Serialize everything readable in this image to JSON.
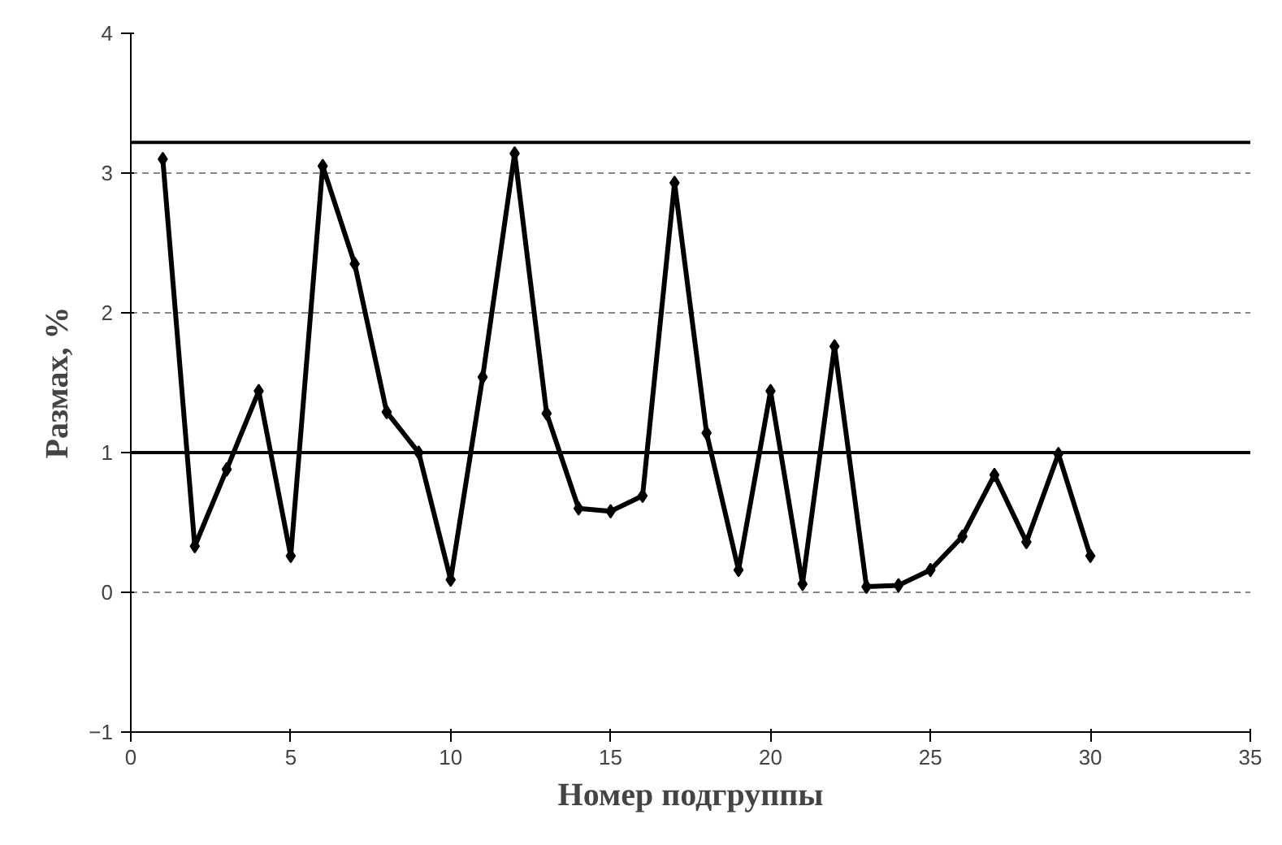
{
  "chart_data": {
    "type": "line",
    "xlabel": "Номер подгруппы",
    "ylabel": "Размах, %",
    "x": [
      1,
      2,
      3,
      4,
      5,
      6,
      7,
      8,
      9,
      10,
      11,
      12,
      13,
      14,
      15,
      16,
      17,
      18,
      19,
      20,
      21,
      22,
      23,
      24,
      25,
      26,
      27,
      28,
      29,
      30
    ],
    "series": [
      {
        "color": "#000000",
        "values": [
          3.1,
          0.33,
          0.88,
          1.44,
          0.26,
          3.05,
          2.35,
          1.29,
          1.0,
          0.09,
          1.54,
          3.14,
          1.28,
          0.6,
          0.58,
          0.69,
          2.93,
          1.14,
          0.16,
          1.44,
          0.06,
          1.76,
          0.04,
          0.05,
          0.16,
          0.4,
          0.84,
          0.36,
          0.99,
          0.26
        ]
      }
    ],
    "xlim": [
      0,
      35
    ],
    "xticks": [
      0,
      5,
      10,
      15,
      20,
      25,
      30,
      35
    ],
    "ylim": [
      -1,
      4
    ],
    "yticks": [
      -1,
      0,
      1,
      2,
      3,
      4
    ],
    "ref_lines": [
      {
        "axis": "y",
        "value": 3.22,
        "label": null,
        "color": "#000000"
      },
      {
        "axis": "y",
        "value": 1.0,
        "label": null,
        "color": "#000000"
      }
    ],
    "grid": "y",
    "marker": "diamond",
    "line_style": "solid"
  }
}
